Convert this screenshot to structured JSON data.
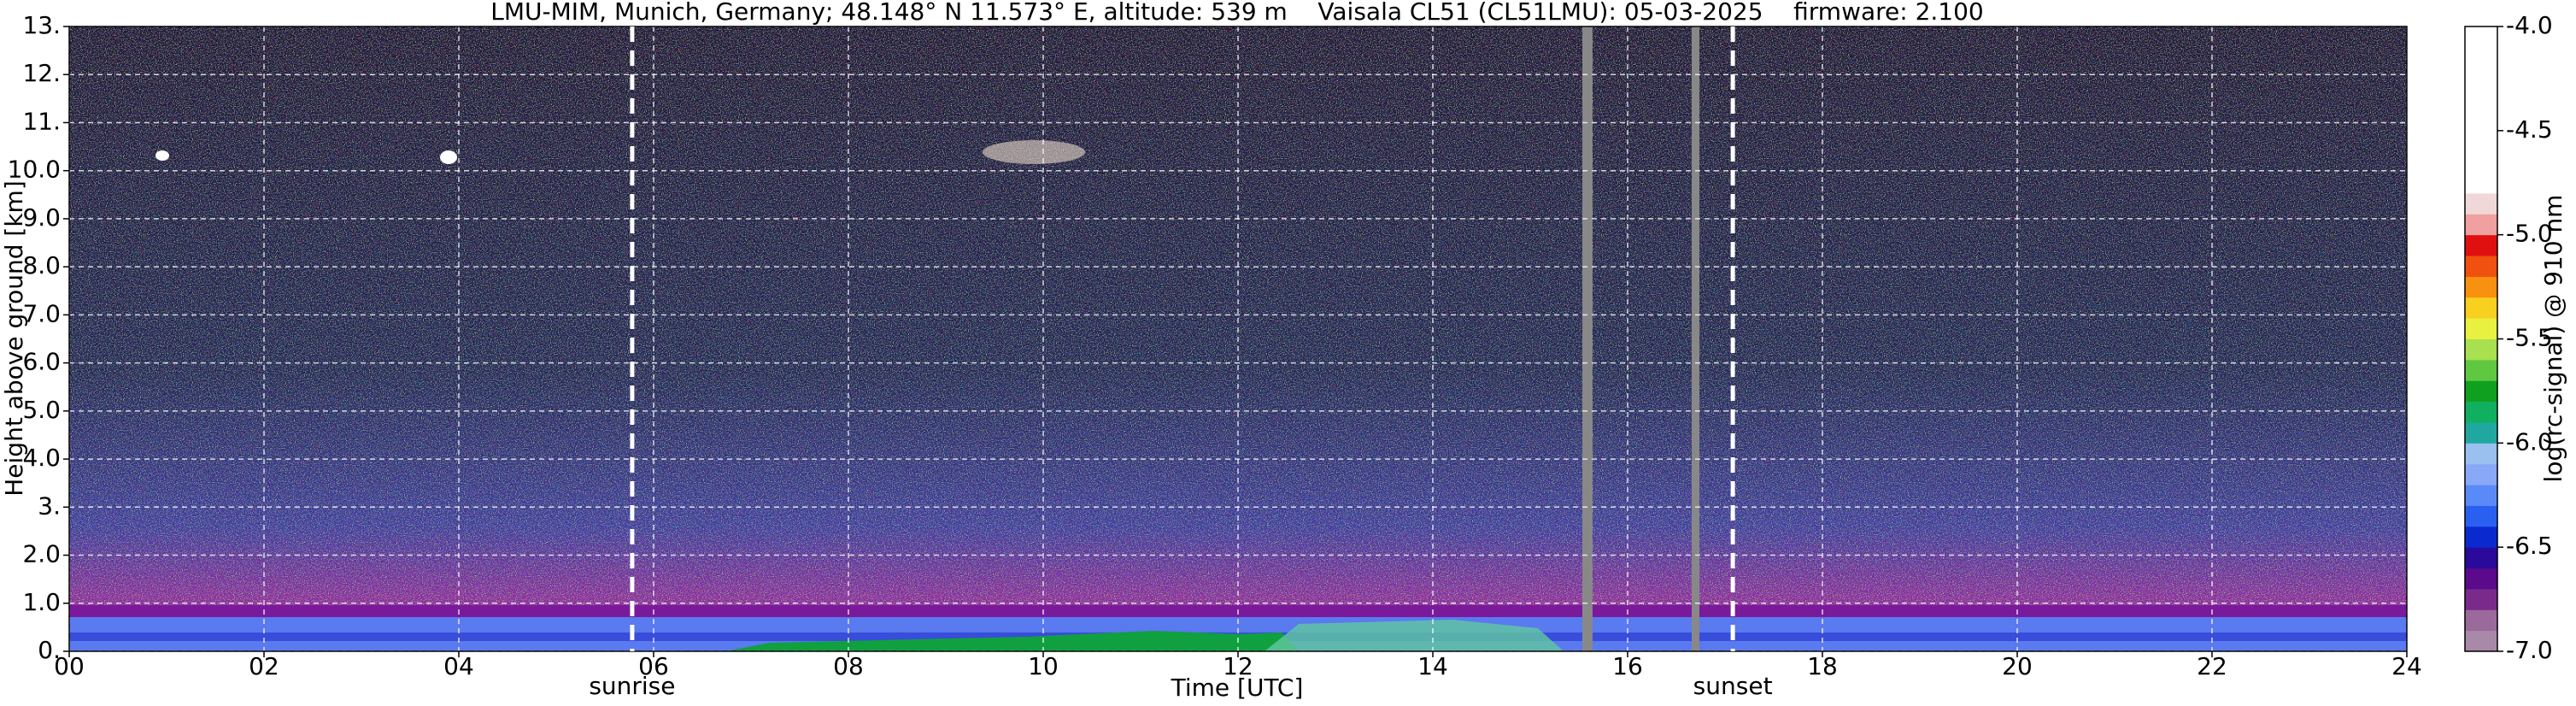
{
  "chart_data": {
    "type": "heatmap",
    "title": "LMU-MIM, Munich, Germany; 48.148° N 11.573° E, altitude: 539 m    Vaisala CL51 (CL51LMU): 05-03-2025    firmware: 2.100",
    "xlabel": "Time [UTC]",
    "ylabel": "Height above ground [km]",
    "colorbar_label": "log(rc-signal) @ 910 nm",
    "xlim": [
      0,
      24
    ],
    "xticks": [
      {
        "value": 0,
        "label": "00"
      },
      {
        "value": 2,
        "label": "02"
      },
      {
        "value": 4,
        "label": "04"
      },
      {
        "value": 6,
        "label": "06"
      },
      {
        "value": 8,
        "label": "08"
      },
      10,
      12,
      14,
      16,
      18,
      20,
      22,
      24
    ],
    "ylim": [
      0,
      13
    ],
    "yticks": [
      {
        "value": 0,
        "label": "0."
      },
      {
        "value": 1,
        "label": "1.0"
      },
      {
        "value": 2,
        "label": "2.0"
      },
      {
        "value": 3,
        "label": "3."
      },
      {
        "value": 4,
        "label": "4.0"
      },
      {
        "value": 5,
        "label": "5.0"
      },
      {
        "value": 6,
        "label": "6.0"
      },
      {
        "value": 7,
        "label": "7.0"
      },
      {
        "value": 8,
        "label": "8.0"
      },
      {
        "value": 9,
        "label": "9.0"
      },
      {
        "value": 10,
        "label": "10.0"
      },
      {
        "value": 11,
        "label": "11."
      },
      {
        "value": 12,
        "label": "12."
      },
      {
        "value": 13,
        "label": "13."
      }
    ],
    "clim": [
      -7,
      -4
    ],
    "cticks": [
      {
        "value": -4,
        "label": "-4.0"
      },
      {
        "value": -4.5,
        "label": "-4.5"
      },
      {
        "value": -5,
        "label": "-5.0"
      },
      {
        "value": -5.5,
        "label": "-5.5"
      },
      {
        "value": -6,
        "label": "-6.0"
      },
      {
        "value": -6.5,
        "label": "-6.5"
      },
      {
        "value": -7,
        "label": "-7.0"
      }
    ],
    "colorscale": [
      "#a88aa8",
      "#9a6a9a",
      "#7a2a8a",
      "#5a0a8a",
      "#2a0a9a",
      "#0a2ad0",
      "#2a60f0",
      "#5a8af8",
      "#8aa8f8",
      "#9ac0f0",
      "#20a8a0",
      "#10b060",
      "#10a020",
      "#60c840",
      "#a8e050",
      "#e8f040",
      "#f8d020",
      "#f89010",
      "#f05010",
      "#e01010",
      "#f0a0a0",
      "#f0d8d8",
      "#ffffff",
      "#ffffff",
      "#ffffff",
      "#ffffff",
      "#ffffff",
      "#ffffff",
      "#ffffff",
      "#ffffff"
    ],
    "grid": true,
    "annotations": [
      {
        "x": 5.78,
        "text": "sunrise"
      },
      {
        "x": 17.08,
        "text": "sunset"
      }
    ]
  }
}
